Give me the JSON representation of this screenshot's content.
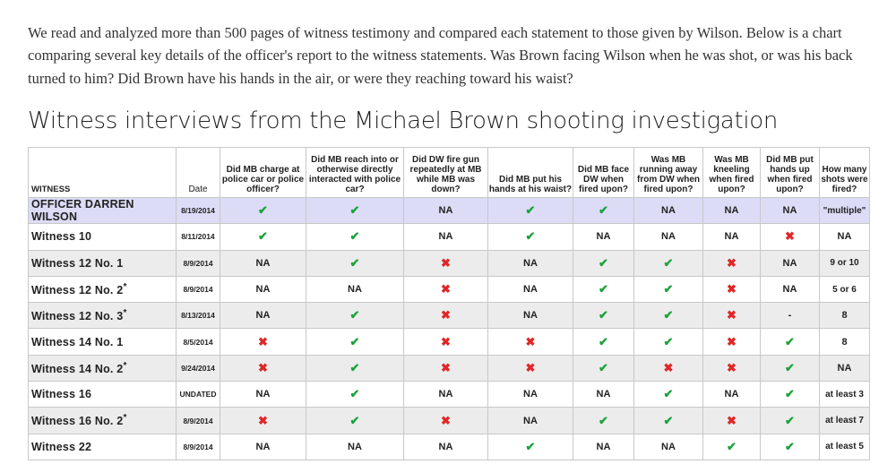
{
  "intro_text": "We read and analyzed more than 500 pages of witness testimony and compared each statement to those given by Wilson. Below is a chart comparing several key details of the officer's report to the witness statements. Was Brown facing Wilson when he was shot, or was his back turned to him? Did Brown have his hands in the air, or were they reaching toward his waist?",
  "title": "Witness interviews from the Michael Brown shooting investigation",
  "columns": [
    "WITNESS",
    "Date",
    "Did MB charge at police car or police officer?",
    "Did MB reach into or otherwise directly interacted with police car?",
    "Did DW fire gun repeatedly at MB while MB was down?",
    "Did MB put his hands at his waist?",
    "Did MB face DW when fired upon?",
    "Was MB running away from DW when fired upon?",
    "Was MB kneeling when fired upon?",
    "Did MB put hands up when fired upon?",
    "How many shots were fired?"
  ],
  "legend_colors": {
    "check": "#1aa33b",
    "cross": "#e02727",
    "officer_row": "#dcdcf7",
    "shaded_row": "#ececec"
  },
  "rows": [
    {
      "name": "OFFICER DARREN WILSON",
      "star": "",
      "date": "8/19/2014",
      "vals": [
        "check",
        "check",
        "NA",
        "check",
        "check",
        "NA",
        "NA",
        "NA",
        "\"multiple\""
      ]
    },
    {
      "name": "Witness 10",
      "star": "",
      "date": "8/11/2014",
      "vals": [
        "check",
        "check",
        "NA",
        "check",
        "NA",
        "NA",
        "NA",
        "cross",
        "NA"
      ]
    },
    {
      "name": "Witness 12 No. 1",
      "star": "",
      "date": "8/9/2014",
      "vals": [
        "NA",
        "check",
        "cross",
        "NA",
        "check",
        "check",
        "cross",
        "NA",
        "9 or 10"
      ]
    },
    {
      "name": "Witness 12 No. 2",
      "star": "*",
      "date": "8/9/2014",
      "vals": [
        "NA",
        "NA",
        "cross",
        "NA",
        "check",
        "check",
        "cross",
        "NA",
        "5 or 6"
      ]
    },
    {
      "name": "Witness 12 No. 3",
      "star": "*",
      "date": "8/13/2014",
      "vals": [
        "NA",
        "check",
        "cross",
        "NA",
        "check",
        "check",
        "cross",
        "-",
        "8"
      ]
    },
    {
      "name": "Witness 14 No. 1",
      "star": "",
      "date": "8/5/2014",
      "vals": [
        "cross",
        "check",
        "cross",
        "cross",
        "check",
        "check",
        "cross",
        "check",
        "8"
      ]
    },
    {
      "name": "Witness 14 No. 2",
      "star": "*",
      "date": "9/24/2014",
      "vals": [
        "cross",
        "check",
        "cross",
        "cross",
        "check",
        "cross",
        "cross",
        "check",
        "NA"
      ]
    },
    {
      "name": "Witness 16",
      "star": "",
      "date": "UNDATED",
      "vals": [
        "NA",
        "check",
        "NA",
        "NA",
        "NA",
        "check",
        "NA",
        "check",
        "at least 3"
      ]
    },
    {
      "name": "Witness 16 No. 2",
      "star": "*",
      "date": "8/9/2014",
      "vals": [
        "cross",
        "check",
        "cross",
        "NA",
        "check",
        "check",
        "cross",
        "check",
        "at least 7"
      ]
    },
    {
      "name": "Witness 22",
      "star": "",
      "date": "8/9/2014",
      "vals": [
        "NA",
        "NA",
        "NA",
        "check",
        "NA",
        "NA",
        "check",
        "check",
        "at least 5"
      ]
    }
  ]
}
